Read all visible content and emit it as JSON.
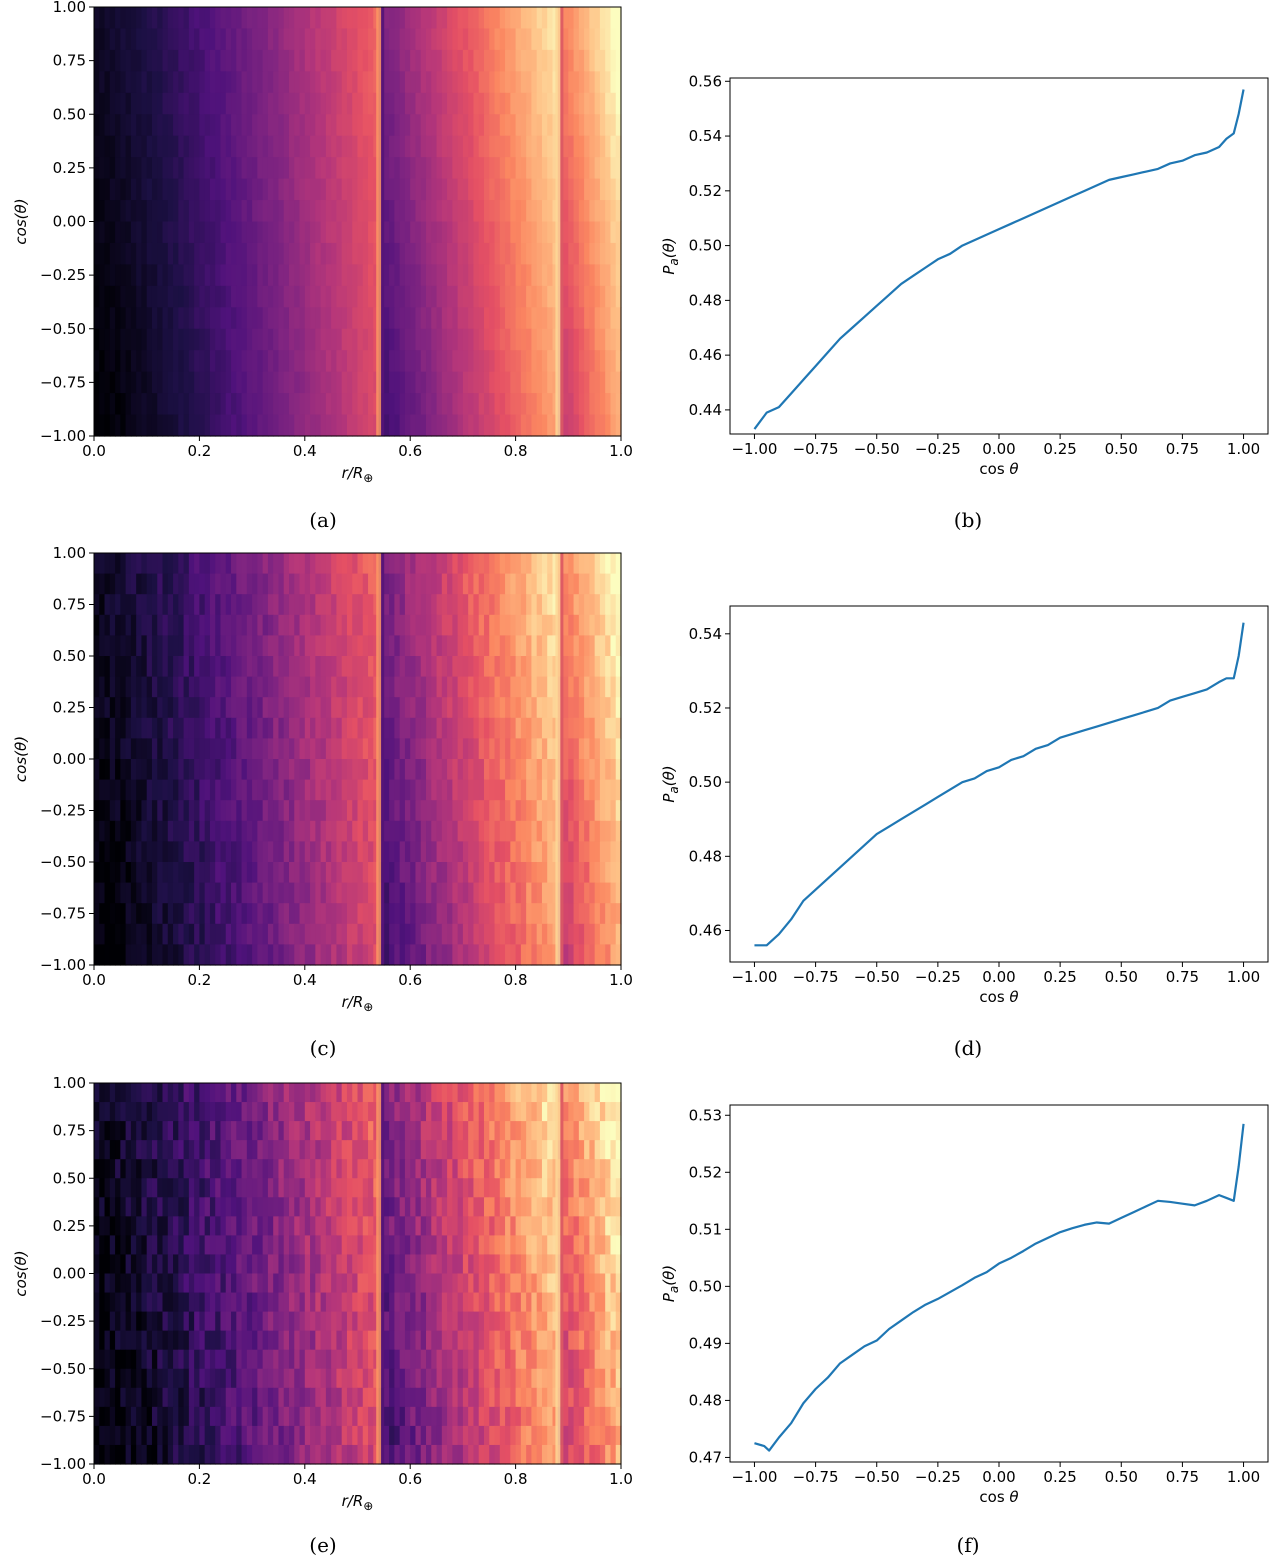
{
  "chart_data": [
    {
      "panel": "a",
      "type": "heatmap",
      "caption": "(a)",
      "xlabel": "r/R",
      "xlabel_sub": "⊕",
      "ylabel": "cos(θ)",
      "xlim": [
        0.0,
        1.0
      ],
      "ylim": [
        -1.0,
        1.0
      ],
      "xticks": [
        "0.0",
        "0.2",
        "0.4",
        "0.6",
        "0.8",
        "1.0"
      ],
      "yticks": [
        "1.00",
        "0.75",
        "0.50",
        "0.25",
        "0.00",
        "−0.25",
        "−0.50",
        "−0.75",
        "−1.00"
      ],
      "colormap": "magma",
      "boundaries": [
        0.545,
        0.885
      ],
      "noise": 0.02
    },
    {
      "panel": "b",
      "type": "line",
      "caption": "(b)",
      "xlabel": "cos θ",
      "ylabel": "P_a(θ)",
      "xlim": [
        -1.1,
        1.1
      ],
      "ylim": [
        0.4312,
        0.5612
      ],
      "xticks": [
        "−1.00",
        "−0.75",
        "−0.50",
        "−0.25",
        "0.00",
        "0.25",
        "0.50",
        "0.75",
        "1.00"
      ],
      "yticks": [
        "0.56",
        "0.54",
        "0.52",
        "0.50",
        "0.48",
        "0.46",
        "0.44"
      ],
      "color": "#1f77b4",
      "series": [
        {
          "x": [
            -1.0,
            -0.95,
            -0.9,
            -0.85,
            -0.8,
            -0.75,
            -0.7,
            -0.65,
            -0.6,
            -0.55,
            -0.5,
            -0.45,
            -0.4,
            -0.35,
            -0.3,
            -0.25,
            -0.2,
            -0.15,
            -0.1,
            -0.05,
            0.0,
            0.05,
            0.1,
            0.15,
            0.2,
            0.25,
            0.3,
            0.35,
            0.4,
            0.45,
            0.5,
            0.55,
            0.6,
            0.65,
            0.7,
            0.75,
            0.8,
            0.85,
            0.9,
            0.93,
            0.96,
            0.98,
            1.0
          ],
          "y": [
            0.433,
            0.439,
            0.441,
            0.446,
            0.451,
            0.456,
            0.461,
            0.466,
            0.47,
            0.474,
            0.478,
            0.482,
            0.486,
            0.489,
            0.492,
            0.495,
            0.497,
            0.5,
            0.502,
            0.504,
            0.506,
            0.508,
            0.51,
            0.512,
            0.514,
            0.516,
            0.518,
            0.52,
            0.522,
            0.524,
            0.525,
            0.526,
            0.527,
            0.528,
            0.53,
            0.531,
            0.533,
            0.534,
            0.536,
            0.539,
            0.541,
            0.548,
            0.557
          ]
        }
      ]
    },
    {
      "panel": "c",
      "type": "heatmap",
      "caption": "(c)",
      "xlabel": "r/R",
      "xlabel_sub": "⊕",
      "ylabel": "cos(θ)",
      "xlim": [
        0.0,
        1.0
      ],
      "ylim": [
        -1.0,
        1.0
      ],
      "xticks": [
        "0.0",
        "0.2",
        "0.4",
        "0.6",
        "0.8",
        "1.0"
      ],
      "yticks": [
        "1.00",
        "0.75",
        "0.50",
        "0.25",
        "0.00",
        "−0.25",
        "−0.50",
        "−0.75",
        "−1.00"
      ],
      "colormap": "magma",
      "boundaries": [
        0.545,
        0.885
      ],
      "noise": 0.05
    },
    {
      "panel": "d",
      "type": "line",
      "caption": "(d)",
      "xlabel": "cos θ",
      "ylabel": "P_a(θ)",
      "xlim": [
        -1.1,
        1.1
      ],
      "ylim": [
        0.4515,
        0.5475
      ],
      "xticks": [
        "−1.00",
        "−0.75",
        "−0.50",
        "−0.25",
        "0.00",
        "0.25",
        "0.50",
        "0.75",
        "1.00"
      ],
      "yticks": [
        "0.54",
        "0.52",
        "0.50",
        "0.48",
        "0.46"
      ],
      "color": "#1f77b4",
      "series": [
        {
          "x": [
            -1.0,
            -0.95,
            -0.9,
            -0.85,
            -0.8,
            -0.75,
            -0.7,
            -0.65,
            -0.6,
            -0.55,
            -0.5,
            -0.45,
            -0.4,
            -0.35,
            -0.3,
            -0.25,
            -0.2,
            -0.15,
            -0.1,
            -0.05,
            0.0,
            0.05,
            0.1,
            0.15,
            0.2,
            0.25,
            0.3,
            0.35,
            0.4,
            0.45,
            0.5,
            0.55,
            0.6,
            0.65,
            0.7,
            0.75,
            0.8,
            0.85,
            0.9,
            0.93,
            0.96,
            0.98,
            1.0
          ],
          "y": [
            0.456,
            0.456,
            0.459,
            0.463,
            0.468,
            0.471,
            0.474,
            0.477,
            0.48,
            0.483,
            0.486,
            0.488,
            0.49,
            0.492,
            0.494,
            0.496,
            0.498,
            0.5,
            0.501,
            0.503,
            0.504,
            0.506,
            0.507,
            0.509,
            0.51,
            0.512,
            0.513,
            0.514,
            0.515,
            0.516,
            0.517,
            0.518,
            0.519,
            0.52,
            0.522,
            0.523,
            0.524,
            0.525,
            0.527,
            0.528,
            0.528,
            0.534,
            0.543
          ]
        }
      ]
    },
    {
      "panel": "e",
      "type": "heatmap",
      "caption": "(e)",
      "xlabel": "r/R",
      "xlabel_sub": "⊕",
      "ylabel": "cos(θ)",
      "xlim": [
        0.0,
        1.0
      ],
      "ylim": [
        -1.0,
        1.0
      ],
      "xticks": [
        "0.0",
        "0.2",
        "0.4",
        "0.6",
        "0.8",
        "1.0"
      ],
      "yticks": [
        "1.00",
        "0.75",
        "0.50",
        "0.25",
        "0.00",
        "−0.25",
        "−0.50",
        "−0.75",
        "−1.00"
      ],
      "colormap": "magma",
      "boundaries": [
        0.545,
        0.885
      ],
      "noise": 0.08
    },
    {
      "panel": "f",
      "type": "line",
      "caption": "(f)",
      "xlabel": "cos θ",
      "ylabel": "P_a(θ)",
      "xlim": [
        -1.1,
        1.1
      ],
      "ylim": [
        0.4692,
        0.5318
      ],
      "xticks": [
        "−1.00",
        "−0.75",
        "−0.50",
        "−0.25",
        "0.00",
        "0.25",
        "0.50",
        "0.75",
        "1.00"
      ],
      "yticks": [
        "0.53",
        "0.52",
        "0.51",
        "0.50",
        "0.49",
        "0.48",
        "0.47"
      ],
      "color": "#1f77b4",
      "series": [
        {
          "x": [
            -1.0,
            -0.96,
            -0.94,
            -0.9,
            -0.85,
            -0.8,
            -0.75,
            -0.7,
            -0.65,
            -0.6,
            -0.55,
            -0.5,
            -0.45,
            -0.4,
            -0.35,
            -0.3,
            -0.25,
            -0.2,
            -0.15,
            -0.1,
            -0.05,
            0.0,
            0.05,
            0.1,
            0.15,
            0.2,
            0.25,
            0.3,
            0.35,
            0.4,
            0.45,
            0.5,
            0.55,
            0.6,
            0.65,
            0.7,
            0.75,
            0.8,
            0.85,
            0.9,
            0.93,
            0.96,
            0.98,
            1.0
          ],
          "y": [
            0.4725,
            0.472,
            0.4712,
            0.4735,
            0.476,
            0.4795,
            0.482,
            0.484,
            0.4865,
            0.488,
            0.4895,
            0.4905,
            0.4925,
            0.494,
            0.4955,
            0.4968,
            0.4978,
            0.499,
            0.5002,
            0.5015,
            0.5025,
            0.504,
            0.505,
            0.5062,
            0.5075,
            0.5085,
            0.5095,
            0.5102,
            0.5108,
            0.5112,
            0.511,
            0.512,
            0.513,
            0.514,
            0.515,
            0.5148,
            0.5145,
            0.5142,
            0.515,
            0.516,
            0.5155,
            0.515,
            0.521,
            0.5285
          ]
        }
      ]
    }
  ]
}
